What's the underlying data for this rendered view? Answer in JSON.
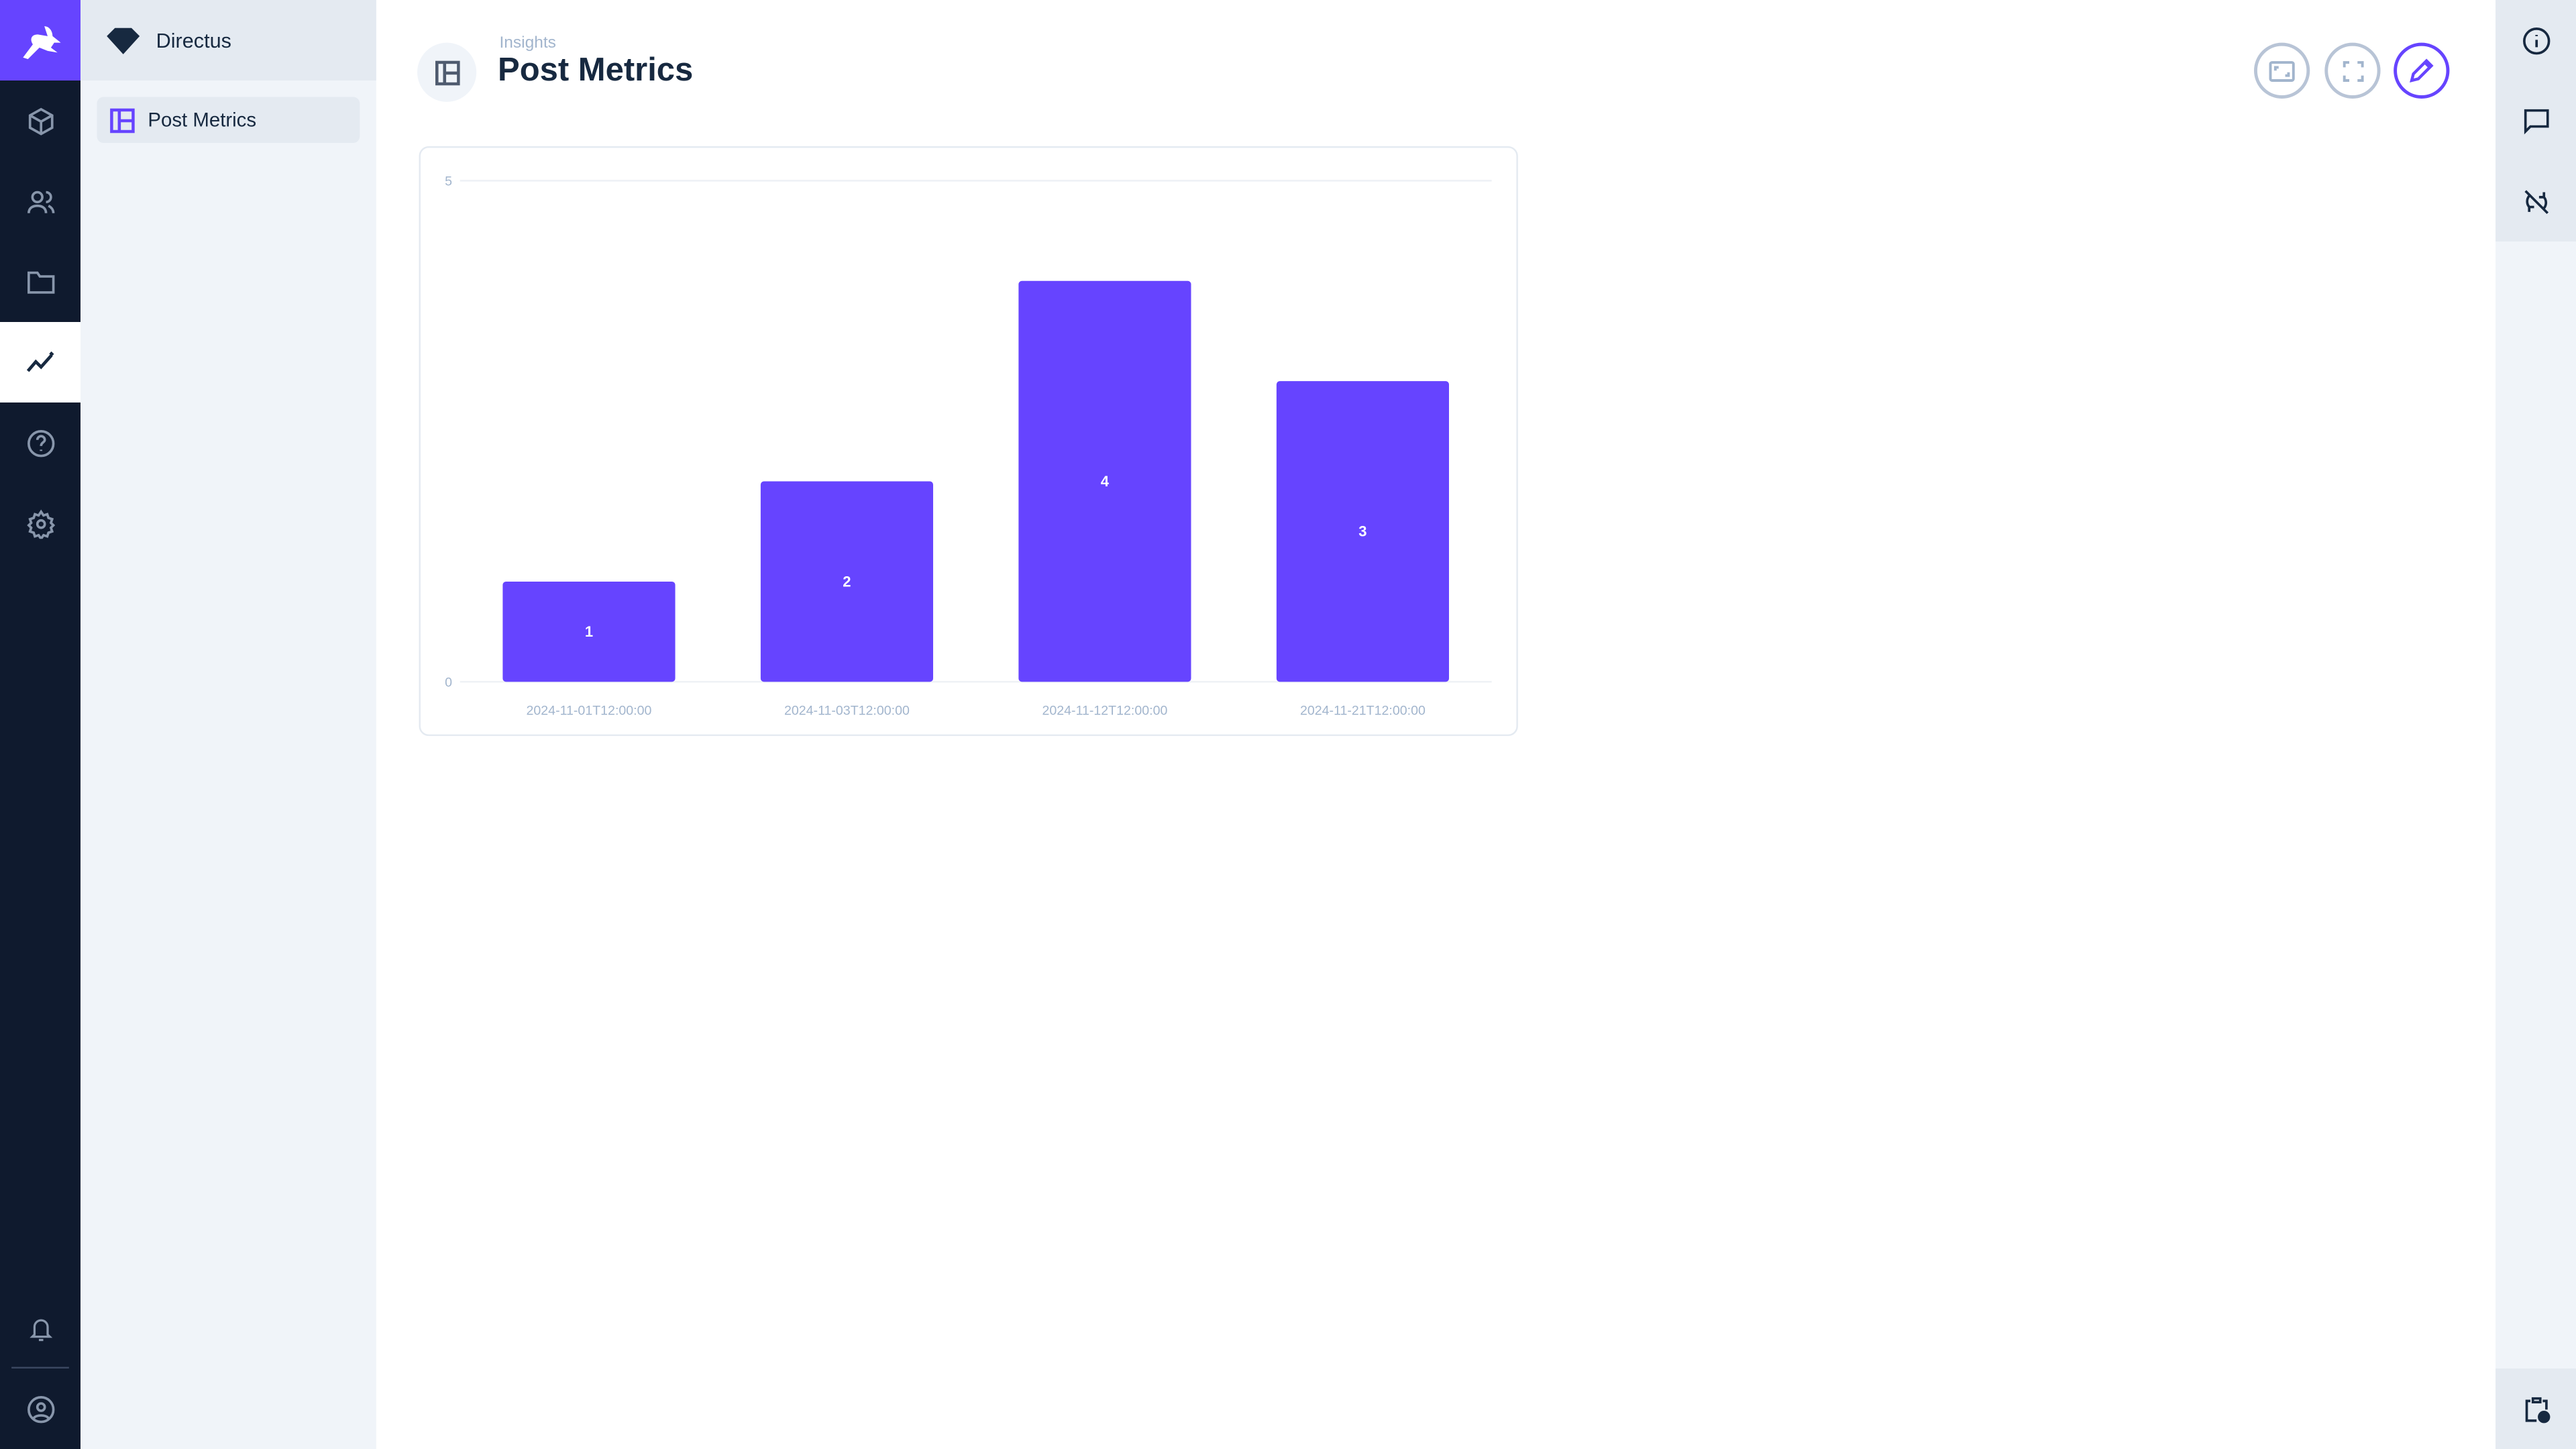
{
  "nav": {
    "logo": "directus-rabbit-logo",
    "items": [
      "content",
      "users",
      "files",
      "insights",
      "help",
      "settings"
    ],
    "active": "insights",
    "bottom": [
      "notifications",
      "user"
    ]
  },
  "panel": {
    "project_name": "Directus",
    "items": [
      {
        "label": "Post Metrics",
        "active": true
      }
    ]
  },
  "header": {
    "breadcrumb": "Insights",
    "title": "Post Metrics",
    "actions": [
      "fit-screen",
      "fullscreen",
      "edit"
    ]
  },
  "sidebar_right": [
    "info",
    "comments",
    "auto-refresh-off",
    "activity"
  ],
  "colors": {
    "accent": "#6644ff",
    "nav_bg": "#0f1a2e",
    "text": "#172940",
    "muted": "#a2b5cd"
  },
  "chart_data": {
    "type": "bar",
    "categories": [
      "2024-11-01T12:00:00",
      "2024-11-03T12:00:00",
      "2024-11-12T12:00:00",
      "2024-11-21T12:00:00"
    ],
    "values": [
      1,
      2,
      4,
      3
    ],
    "data_labels": [
      "1",
      "2",
      "4",
      "3"
    ],
    "yticks": [
      "0",
      "5"
    ],
    "ylim": [
      0,
      5
    ],
    "grid": true,
    "color": "#6644ff"
  }
}
